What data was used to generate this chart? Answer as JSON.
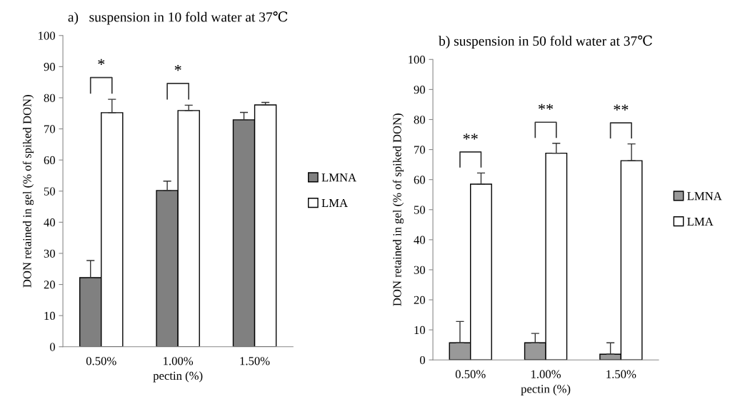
{
  "chart_data": [
    {
      "type": "bar",
      "title": "a)   suspension in 10 fold water at 37℃",
      "xlabel": "pectin (%)",
      "ylabel": "DON retained in gel (% of spiked DON)",
      "categories": [
        "0.50%",
        "1.00%",
        "1.50%"
      ],
      "series": [
        {
          "name": "LMNA",
          "color": "#808080",
          "values": [
            22.2,
            50.2,
            72.9
          ],
          "errors": [
            [
              22.2,
              27.7
            ],
            [
              50.2,
              53.2
            ],
            [
              72.9,
              75.3
            ]
          ]
        },
        {
          "name": "LMA",
          "color": "#ffffff",
          "values": [
            75.2,
            75.9,
            77.7
          ],
          "errors": [
            [
              75.2,
              79.5
            ],
            [
              75.9,
              77.6
            ],
            [
              77.7,
              78.5
            ]
          ]
        }
      ],
      "ylim": [
        0,
        100
      ],
      "yticks": [
        0,
        10,
        20,
        30,
        40,
        50,
        60,
        70,
        80,
        90,
        100
      ],
      "grid": false,
      "legend": "right",
      "annotations": [
        "*",
        "*"
      ]
    },
    {
      "type": "bar",
      "title": "b) suspension in 50 fold water at 37℃",
      "xlabel": "pectin (%)",
      "ylabel": "DON retained in gel (% of spiked DON)",
      "categories": [
        "0.50%",
        "1.00%",
        "1.50%"
      ],
      "series": [
        {
          "name": "LMNA",
          "color": "#999999",
          "values": [
            5.7,
            5.7,
            1.9
          ],
          "errors": [
            [
              5.7,
              12.8
            ],
            [
              5.7,
              8.8
            ],
            [
              1.9,
              5.7
            ]
          ]
        },
        {
          "name": "LMA",
          "color": "#ffffff",
          "values": [
            58.5,
            68.8,
            66.3
          ],
          "errors": [
            [
              58.5,
              62.2
            ],
            [
              68.8,
              72.1
            ],
            [
              66.3,
              71.9
            ]
          ]
        }
      ],
      "ylim": [
        0,
        100
      ],
      "yticks": [
        0,
        10,
        20,
        30,
        40,
        50,
        60,
        70,
        80,
        90,
        100
      ],
      "grid": false,
      "legend": "right",
      "annotations": [
        "**",
        "**",
        "**"
      ]
    }
  ]
}
